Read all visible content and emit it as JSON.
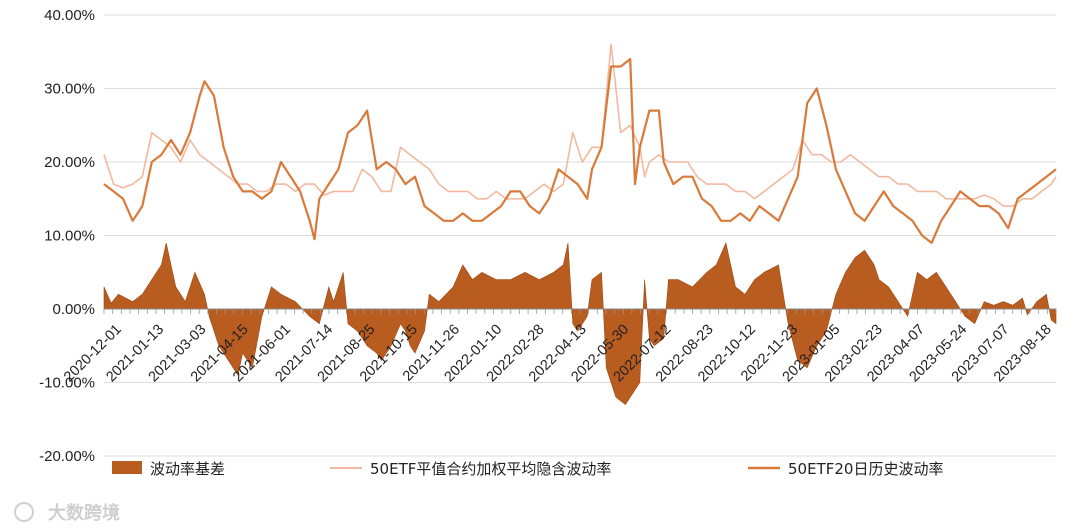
{
  "watermark": "大数跨境",
  "chart_data": {
    "type": "line",
    "y_ticks": [
      "40.00%",
      "30.00%",
      "20.00%",
      "10.00%",
      "0.00%",
      "-10.00%",
      "-20.00%"
    ],
    "y_tick_values": [
      40,
      30,
      20,
      10,
      0,
      -10,
      -20
    ],
    "ylim": [
      -20,
      40
    ],
    "grid": true,
    "legend_position": "bottom",
    "x_tick_labels": [
      "2020-12-01",
      "2021-01-13",
      "2021-03-03",
      "2021-04-15",
      "2021-06-01",
      "2021-07-14",
      "2021-08-25",
      "2021-10-15",
      "2021-11-26",
      "2022-01-10",
      "2022-02-28",
      "2022-04-13",
      "2022-05-30",
      "2022-07-12",
      "2022-08-23",
      "2022-10-12",
      "2022-11-23",
      "2023-01-05",
      "2023-02-23",
      "2023-04-07",
      "2023-05-24",
      "2023-07-07",
      "2023-08-18"
    ],
    "series": [
      {
        "name": "波动率基差",
        "type": "area",
        "color": "#b85c20",
        "points": [
          [
            0,
            3
          ],
          [
            1.5,
            0.8
          ],
          [
            3,
            2
          ],
          [
            6,
            1
          ],
          [
            8,
            2
          ],
          [
            10,
            4
          ],
          [
            12,
            6
          ],
          [
            13,
            9
          ],
          [
            15,
            3
          ],
          [
            17,
            1
          ],
          [
            19,
            5
          ],
          [
            21,
            2
          ],
          [
            22,
            -1
          ],
          [
            24,
            -5
          ],
          [
            26,
            -7
          ],
          [
            28,
            -9
          ],
          [
            29,
            -6
          ],
          [
            31,
            -8
          ],
          [
            33,
            -1
          ],
          [
            35,
            3
          ],
          [
            37,
            2
          ],
          [
            40,
            1
          ],
          [
            43,
            -1
          ],
          [
            45,
            -2
          ],
          [
            47,
            3
          ],
          [
            48,
            1
          ],
          [
            50,
            5
          ],
          [
            51,
            -2
          ],
          [
            53,
            -3
          ],
          [
            55,
            -5
          ],
          [
            57,
            -6
          ],
          [
            58,
            -7
          ],
          [
            60,
            -5
          ],
          [
            62,
            -2
          ],
          [
            63,
            -3
          ],
          [
            64,
            -5
          ],
          [
            65,
            -6
          ],
          [
            67,
            -3
          ],
          [
            68,
            2
          ],
          [
            70,
            1
          ],
          [
            73,
            3
          ],
          [
            75,
            6
          ],
          [
            77,
            4
          ],
          [
            79,
            5
          ],
          [
            82,
            4
          ],
          [
            85,
            4
          ],
          [
            88,
            5
          ],
          [
            91,
            4
          ],
          [
            94,
            5
          ],
          [
            96,
            6
          ],
          [
            97,
            9
          ],
          [
            98,
            -2
          ],
          [
            99,
            -3
          ],
          [
            101,
            -1
          ],
          [
            102,
            4
          ],
          [
            104,
            5
          ],
          [
            105,
            -8
          ],
          [
            107,
            -12
          ],
          [
            109,
            -13
          ],
          [
            110,
            -12
          ],
          [
            112,
            -10
          ],
          [
            113,
            4
          ],
          [
            114,
            -4
          ],
          [
            115,
            -5
          ],
          [
            117,
            -4
          ],
          [
            118,
            4
          ],
          [
            120,
            4
          ],
          [
            123,
            3
          ],
          [
            126,
            5
          ],
          [
            128,
            6
          ],
          [
            130,
            9
          ],
          [
            132,
            3
          ],
          [
            134,
            2
          ],
          [
            136,
            4
          ],
          [
            138,
            5
          ],
          [
            141,
            6
          ],
          [
            142,
            2
          ],
          [
            143,
            -2
          ],
          [
            145,
            -7
          ],
          [
            147,
            -8
          ],
          [
            149,
            -5
          ],
          [
            151,
            -3
          ],
          [
            153,
            2
          ],
          [
            155,
            5
          ],
          [
            157,
            7
          ],
          [
            159,
            8
          ],
          [
            161,
            6
          ],
          [
            162,
            4
          ],
          [
            164,
            3
          ],
          [
            166,
            1
          ],
          [
            168,
            -1
          ],
          [
            170,
            5
          ],
          [
            172,
            4
          ],
          [
            174,
            5
          ],
          [
            176,
            3
          ],
          [
            178,
            1
          ],
          [
            180,
            -1
          ],
          [
            182,
            -2
          ],
          [
            184,
            1
          ],
          [
            186,
            0.5
          ],
          [
            188,
            1
          ],
          [
            190,
            0.5
          ],
          [
            192,
            1.5
          ],
          [
            193,
            -0.8
          ],
          [
            195,
            1
          ],
          [
            197,
            2
          ],
          [
            198,
            -1.5
          ],
          [
            199,
            -2
          ]
        ]
      },
      {
        "name": "50ETF平值合约加权平均隐含波动率",
        "type": "line",
        "color": "#f2b9a0",
        "points": [
          [
            0,
            21
          ],
          [
            2,
            17
          ],
          [
            4,
            16.5
          ],
          [
            6,
            17
          ],
          [
            8,
            18
          ],
          [
            10,
            24
          ],
          [
            12,
            23
          ],
          [
            14,
            22
          ],
          [
            16,
            20
          ],
          [
            18,
            23
          ],
          [
            20,
            21
          ],
          [
            22,
            20
          ],
          [
            24,
            19
          ],
          [
            26,
            18
          ],
          [
            28,
            17
          ],
          [
            30,
            17
          ],
          [
            32,
            16
          ],
          [
            34,
            16
          ],
          [
            36,
            17
          ],
          [
            38,
            17
          ],
          [
            40,
            16
          ],
          [
            42,
            17
          ],
          [
            44,
            17
          ],
          [
            46,
            15.5
          ],
          [
            48,
            16
          ],
          [
            50,
            16
          ],
          [
            52,
            16
          ],
          [
            54,
            19
          ],
          [
            56,
            18
          ],
          [
            58,
            16
          ],
          [
            60,
            16
          ],
          [
            62,
            22
          ],
          [
            64,
            21
          ],
          [
            66,
            20
          ],
          [
            68,
            19
          ],
          [
            70,
            17
          ],
          [
            72,
            16
          ],
          [
            74,
            16
          ],
          [
            76,
            16
          ],
          [
            78,
            15
          ],
          [
            80,
            15
          ],
          [
            82,
            16
          ],
          [
            84,
            15
          ],
          [
            86,
            15
          ],
          [
            88,
            15
          ],
          [
            90,
            16
          ],
          [
            92,
            17
          ],
          [
            94,
            16
          ],
          [
            96,
            17
          ],
          [
            98,
            24
          ],
          [
            100,
            20
          ],
          [
            102,
            22
          ],
          [
            104,
            22
          ],
          [
            106,
            36
          ],
          [
            108,
            24
          ],
          [
            110,
            25
          ],
          [
            112,
            22
          ],
          [
            113,
            18
          ],
          [
            114,
            20
          ],
          [
            116,
            21
          ],
          [
            118,
            20
          ],
          [
            120,
            20
          ],
          [
            122,
            20
          ],
          [
            124,
            18
          ],
          [
            126,
            17
          ],
          [
            128,
            17
          ],
          [
            130,
            17
          ],
          [
            132,
            16
          ],
          [
            134,
            16
          ],
          [
            136,
            15
          ],
          [
            138,
            16
          ],
          [
            140,
            17
          ],
          [
            142,
            18
          ],
          [
            144,
            19
          ],
          [
            146,
            23
          ],
          [
            148,
            21
          ],
          [
            150,
            21
          ],
          [
            152,
            20
          ],
          [
            154,
            20
          ],
          [
            156,
            21
          ],
          [
            158,
            20
          ],
          [
            160,
            19
          ],
          [
            162,
            18
          ],
          [
            164,
            18
          ],
          [
            166,
            17
          ],
          [
            168,
            17
          ],
          [
            170,
            16
          ],
          [
            172,
            16
          ],
          [
            174,
            16
          ],
          [
            176,
            15
          ],
          [
            178,
            15
          ],
          [
            180,
            15
          ],
          [
            182,
            15
          ],
          [
            184,
            15.5
          ],
          [
            186,
            15
          ],
          [
            188,
            14
          ],
          [
            190,
            14
          ],
          [
            192,
            15
          ],
          [
            194,
            15
          ],
          [
            196,
            16
          ],
          [
            198,
            17
          ],
          [
            199,
            18
          ]
        ]
      },
      {
        "name": "50ETF20日历史波动率",
        "type": "line",
        "color": "#d97a3a",
        "points": [
          [
            0,
            17
          ],
          [
            2,
            16
          ],
          [
            4,
            15
          ],
          [
            6,
            12
          ],
          [
            8,
            14
          ],
          [
            10,
            20
          ],
          [
            12,
            21
          ],
          [
            14,
            23
          ],
          [
            16,
            21
          ],
          [
            18,
            24
          ],
          [
            20,
            29
          ],
          [
            21,
            31
          ],
          [
            23,
            29
          ],
          [
            25,
            22
          ],
          [
            27,
            18
          ],
          [
            29,
            16
          ],
          [
            31,
            16
          ],
          [
            33,
            15
          ],
          [
            35,
            16
          ],
          [
            37,
            20
          ],
          [
            39,
            18
          ],
          [
            41,
            16
          ],
          [
            43,
            12
          ],
          [
            44,
            9.5
          ],
          [
            45,
            15
          ],
          [
            47,
            17
          ],
          [
            49,
            19
          ],
          [
            51,
            24
          ],
          [
            53,
            25
          ],
          [
            55,
            27
          ],
          [
            57,
            19
          ],
          [
            59,
            20
          ],
          [
            61,
            19
          ],
          [
            63,
            17
          ],
          [
            65,
            18
          ],
          [
            67,
            14
          ],
          [
            69,
            13
          ],
          [
            71,
            12
          ],
          [
            73,
            12
          ],
          [
            75,
            13
          ],
          [
            77,
            12
          ],
          [
            79,
            12
          ],
          [
            81,
            13
          ],
          [
            83,
            14
          ],
          [
            85,
            16
          ],
          [
            87,
            16
          ],
          [
            89,
            14
          ],
          [
            91,
            13
          ],
          [
            93,
            15
          ],
          [
            95,
            19
          ],
          [
            97,
            18
          ],
          [
            99,
            17
          ],
          [
            101,
            15
          ],
          [
            102,
            19
          ],
          [
            104,
            22
          ],
          [
            106,
            33
          ],
          [
            108,
            33
          ],
          [
            110,
            34
          ],
          [
            111,
            17
          ],
          [
            112,
            22
          ],
          [
            114,
            27
          ],
          [
            116,
            27
          ],
          [
            117,
            20
          ],
          [
            119,
            17
          ],
          [
            121,
            18
          ],
          [
            123,
            18
          ],
          [
            125,
            15
          ],
          [
            127,
            14
          ],
          [
            129,
            12
          ],
          [
            131,
            12
          ],
          [
            133,
            13
          ],
          [
            135,
            12
          ],
          [
            137,
            14
          ],
          [
            139,
            13
          ],
          [
            141,
            12
          ],
          [
            143,
            15
          ],
          [
            145,
            18
          ],
          [
            147,
            28
          ],
          [
            149,
            30
          ],
          [
            151,
            25
          ],
          [
            153,
            19
          ],
          [
            155,
            16
          ],
          [
            157,
            13
          ],
          [
            159,
            12
          ],
          [
            161,
            14
          ],
          [
            163,
            16
          ],
          [
            165,
            14
          ],
          [
            167,
            13
          ],
          [
            169,
            12
          ],
          [
            171,
            10
          ],
          [
            173,
            9
          ],
          [
            175,
            12
          ],
          [
            177,
            14
          ],
          [
            179,
            16
          ],
          [
            181,
            15
          ],
          [
            183,
            14
          ],
          [
            185,
            14
          ],
          [
            187,
            13
          ],
          [
            188,
            12
          ],
          [
            189,
            11
          ],
          [
            191,
            15
          ],
          [
            193,
            16
          ],
          [
            195,
            17
          ],
          [
            197,
            18
          ],
          [
            199,
            19
          ]
        ]
      }
    ]
  }
}
